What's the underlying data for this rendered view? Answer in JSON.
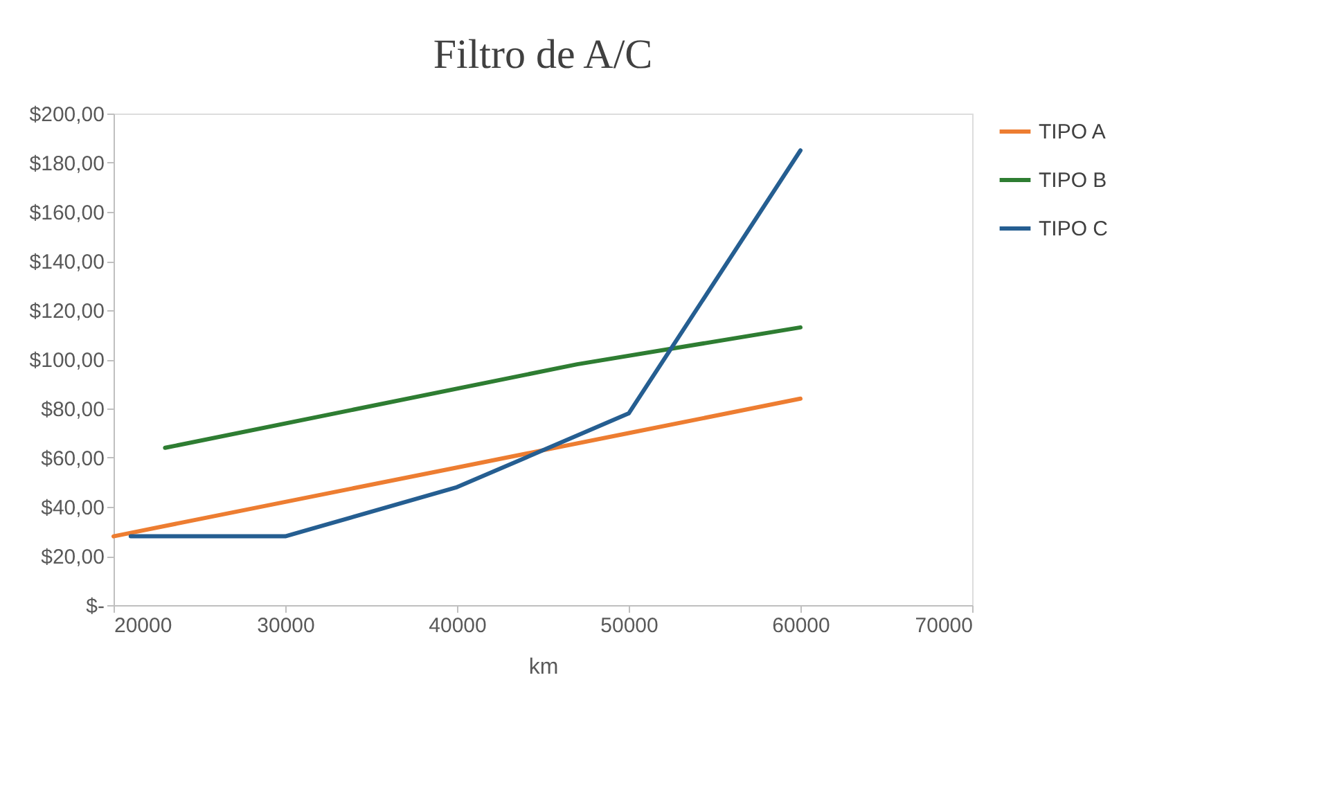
{
  "chart_data": {
    "type": "line",
    "title": "Filtro de A/C",
    "xlabel": "km",
    "xlim": [
      20000,
      70000
    ],
    "xticks": [
      20000,
      30000,
      40000,
      50000,
      60000,
      70000
    ],
    "ylim": [
      0,
      200
    ],
    "yticks": [
      {
        "value": 0,
        "label": "$-"
      },
      {
        "value": 20,
        "label": "$20,00"
      },
      {
        "value": 40,
        "label": "$40,00"
      },
      {
        "value": 60,
        "label": "$60,00"
      },
      {
        "value": 80,
        "label": "$80,00"
      },
      {
        "value": 100,
        "label": "$100,00"
      },
      {
        "value": 120,
        "label": "$120,00"
      },
      {
        "value": 140,
        "label": "$140,00"
      },
      {
        "value": 160,
        "label": "$160,00"
      },
      {
        "value": 180,
        "label": "$180,00"
      },
      {
        "value": 200,
        "label": "$200,00"
      }
    ],
    "grid": false,
    "legend": "right",
    "marker": "none",
    "line_style": "solid",
    "series": [
      {
        "name": "TIPO A",
        "color": "#ed7d31",
        "x": [
          20000,
          30000,
          40000,
          50000,
          60000
        ],
        "values": [
          28,
          42,
          56,
          70,
          84
        ]
      },
      {
        "name": "TIPO B",
        "color": "#2e7d32",
        "x": [
          23000,
          47000,
          60000
        ],
        "values": [
          64,
          98,
          113
        ]
      },
      {
        "name": "TIPO C",
        "color": "#255e91",
        "x": [
          21000,
          30000,
          40000,
          50000,
          60000
        ],
        "values": [
          28,
          28,
          48,
          78,
          185
        ]
      }
    ]
  }
}
